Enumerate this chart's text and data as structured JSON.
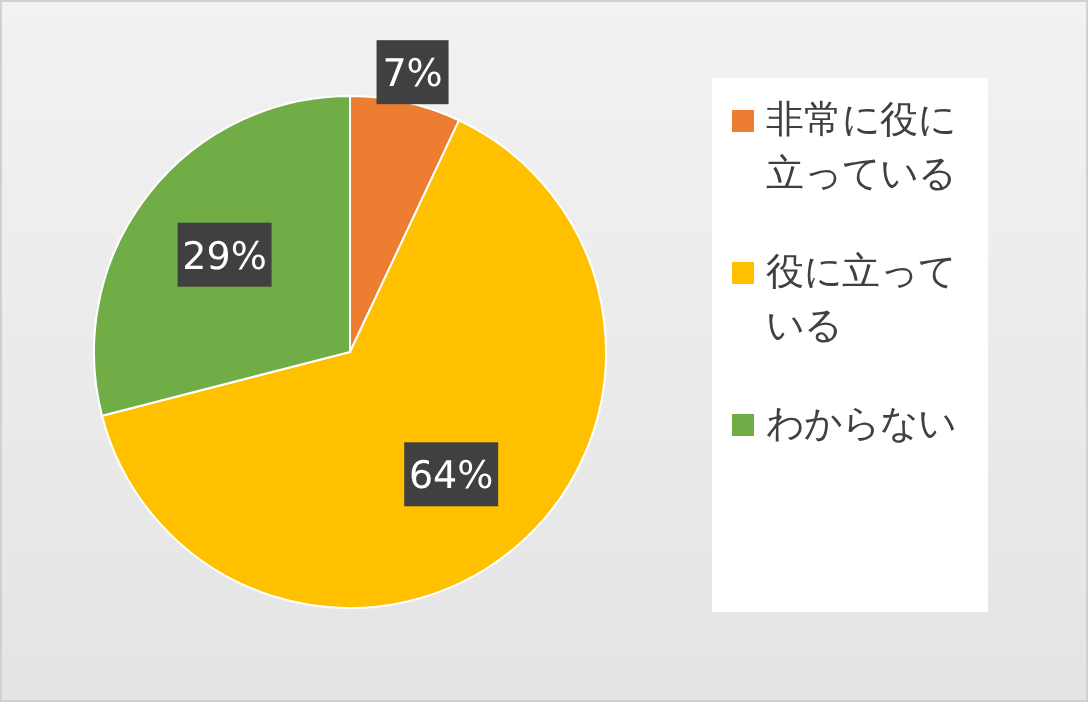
{
  "chart_data": {
    "type": "pie",
    "categories": [
      "非常に役に立っている",
      "役に立っている",
      "わからない"
    ],
    "values": [
      7,
      64,
      29
    ],
    "colors": [
      "#ed7d31",
      "#ffc000",
      "#70ad47"
    ],
    "value_labels": [
      "7%",
      "64%",
      "29%"
    ],
    "legend": "right"
  }
}
